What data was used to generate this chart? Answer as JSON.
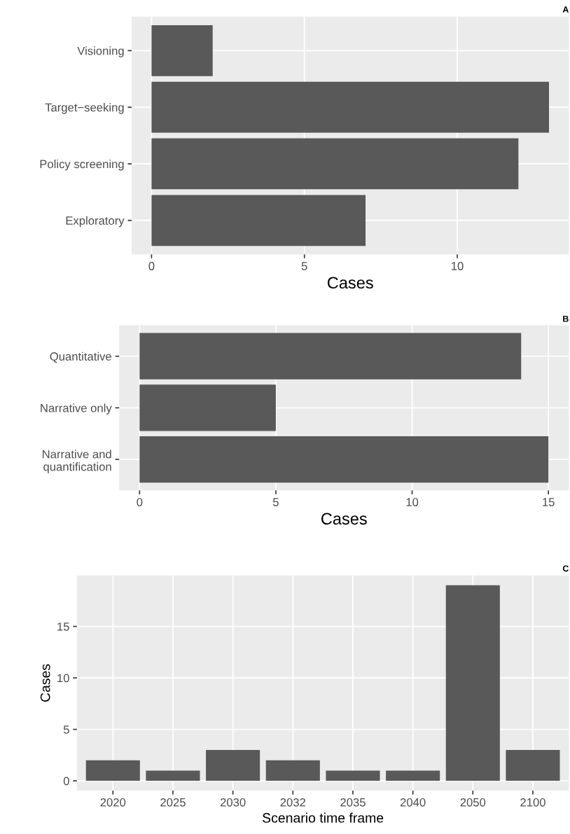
{
  "chart_data": [
    {
      "type": "bar",
      "orientation": "horizontal",
      "categories": [
        "Visioning",
        "Target−seeking",
        "Policy screening",
        "Exploratory"
      ],
      "values": [
        2,
        13,
        12,
        7
      ],
      "color": "#595959",
      "xlabel": "Cases",
      "xlim": [
        -0.65,
        13.65
      ],
      "xticks": [
        0,
        5,
        10
      ],
      "grid": true,
      "annotations": [
        "A"
      ]
    },
    {
      "type": "bar",
      "orientation": "horizontal",
      "categories": [
        "Quantitative",
        "Narrative only",
        "Narrative and\nquantification"
      ],
      "values": [
        14,
        5,
        15
      ],
      "color": "#595959",
      "xlabel": "Cases",
      "xlim": [
        -0.75,
        15.75
      ],
      "xticks": [
        0,
        5,
        10,
        15
      ],
      "grid": true,
      "annotations": [
        "B"
      ]
    },
    {
      "type": "bar",
      "categories": [
        "2020",
        "2025",
        "2030",
        "2032",
        "2035",
        "2040",
        "2050",
        "2100"
      ],
      "values": [
        2,
        1,
        3,
        2,
        1,
        1,
        19,
        3
      ],
      "color": "#595959",
      "xlabel": "Scenario time frame",
      "ylabel": "Cases",
      "ylim": [
        -0.95,
        19.95
      ],
      "yticks": [
        0,
        5,
        10,
        15
      ],
      "grid": true,
      "annotations": [
        "C"
      ]
    }
  ]
}
